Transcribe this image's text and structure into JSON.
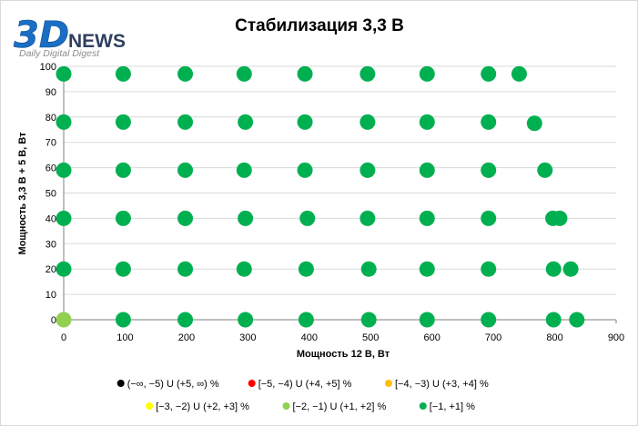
{
  "logo": {
    "mark": "3D",
    "word": "NEWS",
    "tagline": "Daily Digital Digest"
  },
  "colors": {
    "grid": "#d9d9d9",
    "axis": "#000000",
    "logo_blue": "#1a6fc4",
    "logo_gray": "#8c8c8c"
  },
  "chart_data": {
    "type": "scatter",
    "title": "Стабилизация 3,3 В",
    "xlabel": "Мощность  12 В, Вт",
    "ylabel": "Мощность  3,3 В + 5 В, Вт",
    "xlim": [
      0,
      900
    ],
    "ylim": [
      0,
      100
    ],
    "xticks": [
      0,
      100,
      200,
      300,
      400,
      500,
      600,
      700,
      800,
      900
    ],
    "yticks": [
      0,
      10,
      20,
      30,
      40,
      50,
      60,
      70,
      80,
      90,
      100
    ],
    "grid": "horizontal",
    "legend_position": "bottom",
    "series": [
      {
        "name": "(−∞, −5) U (+5, ∞) %",
        "color": "#000000",
        "points": []
      },
      {
        "name": "[−5, −4) U (+4, +5] %",
        "color": "#ff0000",
        "points": []
      },
      {
        "name": "[−4, −3) U (+3, +4] %",
        "color": "#ffc000",
        "points": []
      },
      {
        "name": "[−3, −2) U (+2, +3] %",
        "color": "#ffff00",
        "points": []
      },
      {
        "name": "[−2, −1) U (+1, +2] %",
        "color": "#92d050",
        "points": [
          [
            0,
            0
          ]
        ]
      },
      {
        "name": "[−1, +1] %",
        "color": "#00b050",
        "points": [
          [
            0,
            97
          ],
          [
            97,
            97
          ],
          [
            198,
            97
          ],
          [
            294,
            97
          ],
          [
            393,
            97
          ],
          [
            495,
            97
          ],
          [
            592,
            97
          ],
          [
            692,
            97
          ],
          [
            742,
            97
          ],
          [
            0,
            78
          ],
          [
            97,
            78
          ],
          [
            198,
            78
          ],
          [
            296,
            78
          ],
          [
            393,
            78
          ],
          [
            495,
            78
          ],
          [
            592,
            78
          ],
          [
            692,
            78
          ],
          [
            767,
            77.5
          ],
          [
            0,
            59
          ],
          [
            97,
            59
          ],
          [
            198,
            59
          ],
          [
            294,
            59
          ],
          [
            393,
            59
          ],
          [
            495,
            59
          ],
          [
            592,
            59
          ],
          [
            692,
            59
          ],
          [
            784,
            59
          ],
          [
            0,
            40
          ],
          [
            97,
            40
          ],
          [
            198,
            40
          ],
          [
            296,
            40
          ],
          [
            397,
            40
          ],
          [
            495,
            40
          ],
          [
            592,
            40
          ],
          [
            692,
            40
          ],
          [
            797,
            40
          ],
          [
            808,
            40
          ],
          [
            0,
            20
          ],
          [
            97,
            20
          ],
          [
            198,
            20
          ],
          [
            294,
            20
          ],
          [
            395,
            20
          ],
          [
            497,
            20
          ],
          [
            592,
            20
          ],
          [
            692,
            20
          ],
          [
            798,
            20
          ],
          [
            826,
            20
          ],
          [
            97,
            0
          ],
          [
            198,
            0
          ],
          [
            296,
            0
          ],
          [
            395,
            0
          ],
          [
            497,
            0
          ],
          [
            592,
            0
          ],
          [
            692,
            0
          ],
          [
            798,
            0
          ],
          [
            836,
            0
          ]
        ]
      }
    ]
  }
}
